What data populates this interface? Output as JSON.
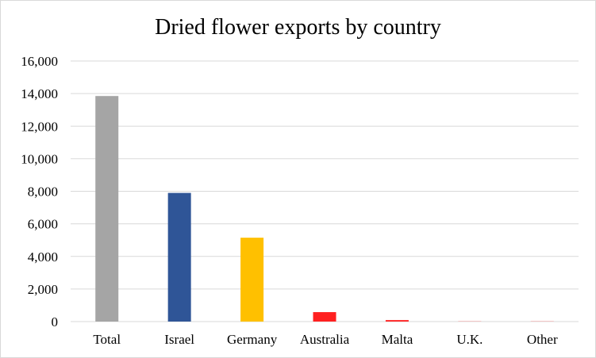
{
  "chart_data": {
    "type": "bar",
    "title": "Dried flower exports by country",
    "xlabel": "",
    "ylabel": "",
    "categories": [
      "Total",
      "Israel",
      "Germany",
      "Australia",
      "Malta",
      "U.K.",
      "Other"
    ],
    "values": [
      13850,
      7900,
      5150,
      580,
      90,
      10,
      10
    ],
    "colors": [
      "#a5a5a5",
      "#2f5597",
      "#ffc000",
      "#ff2020",
      "#ff2020",
      "#ff2020",
      "#ff2020"
    ],
    "ylim": [
      0,
      16000
    ],
    "yticks": [
      0,
      2000,
      4000,
      6000,
      8000,
      10000,
      12000,
      14000,
      16000
    ],
    "ytick_labels": [
      "0",
      "2,000",
      "4,000",
      "6,000",
      "8,000",
      "10,000",
      "12,000",
      "14,000",
      "16,000"
    ],
    "grid": true,
    "gridline_color": "#d9d9d9"
  }
}
